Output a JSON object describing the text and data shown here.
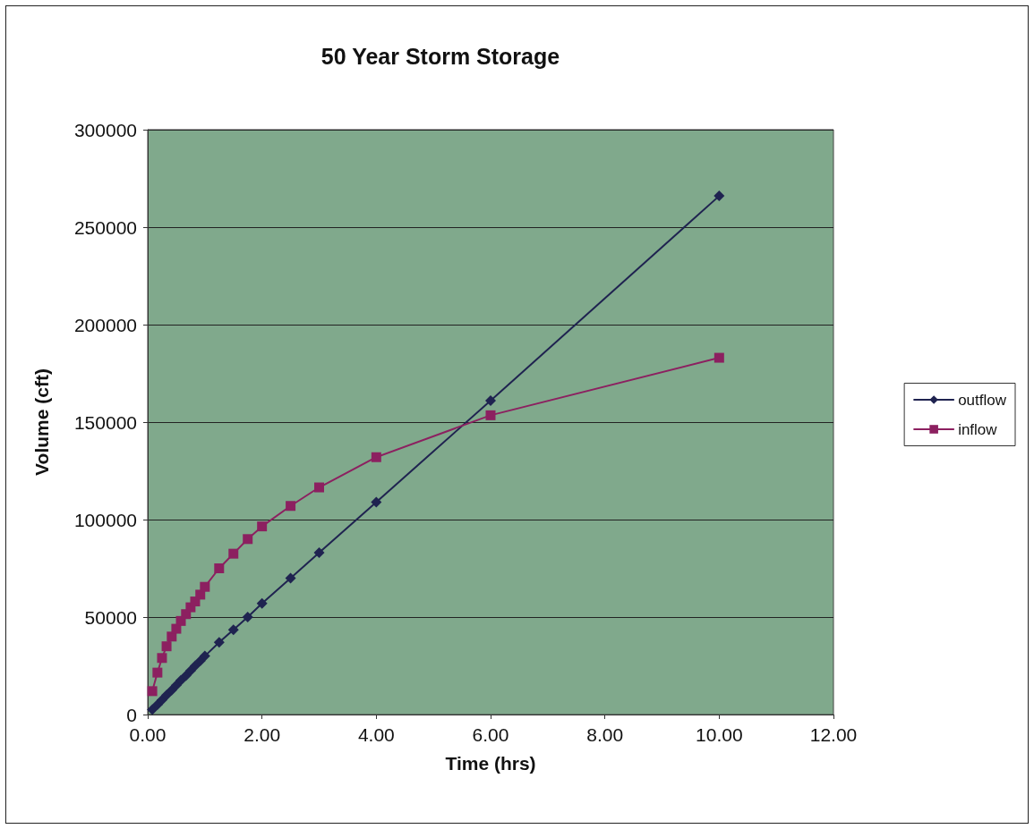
{
  "chart_data": {
    "type": "line",
    "title": "50 Year Storm Storage",
    "xlabel": "Time (hrs)",
    "ylabel": "Volume (cft)",
    "xlim": [
      0,
      12
    ],
    "xticks": [
      {
        "value": 0,
        "label": "0.00"
      },
      {
        "value": 2,
        "label": "2.00"
      },
      {
        "value": 4,
        "label": "4.00"
      },
      {
        "value": 6,
        "label": "6.00"
      },
      {
        "value": 8,
        "label": "8.00"
      },
      {
        "value": 10,
        "label": "10.00"
      },
      {
        "value": 12,
        "label": "12.00"
      }
    ],
    "ylim": [
      0,
      300000
    ],
    "yticks": [
      0,
      50000,
      100000,
      150000,
      200000,
      250000,
      300000
    ],
    "grid": "y",
    "legend": "right",
    "line_style": "solid",
    "series": [
      {
        "name": "outflow",
        "color": "#1f2350",
        "marker": "diamond",
        "x": [
          0.08,
          0.17,
          0.25,
          0.33,
          0.42,
          0.5,
          0.58,
          0.67,
          0.75,
          0.83,
          0.92,
          1.0,
          1.25,
          1.5,
          1.75,
          2.0,
          2.5,
          3.0,
          4.0,
          6.0,
          10.0
        ],
        "values": [
          2500,
          5000,
          7500,
          10000,
          12500,
          15000,
          17500,
          20000,
          22500,
          25000,
          27500,
          30000,
          37000,
          43500,
          50000,
          57000,
          70000,
          83000,
          109000,
          161000,
          266000
        ]
      },
      {
        "name": "inflow",
        "color": "#8c2060",
        "marker": "square",
        "x": [
          0.08,
          0.17,
          0.25,
          0.33,
          0.42,
          0.5,
          0.58,
          0.67,
          0.75,
          0.83,
          0.92,
          1.0,
          1.25,
          1.5,
          1.75,
          2.0,
          2.5,
          3.0,
          4.0,
          6.0,
          10.0
        ],
        "values": [
          12000,
          21500,
          29000,
          35000,
          40000,
          44000,
          48000,
          51500,
          55000,
          58000,
          61500,
          65500,
          75000,
          82500,
          90000,
          96500,
          107000,
          116500,
          132000,
          153500,
          183000
        ]
      }
    ]
  }
}
